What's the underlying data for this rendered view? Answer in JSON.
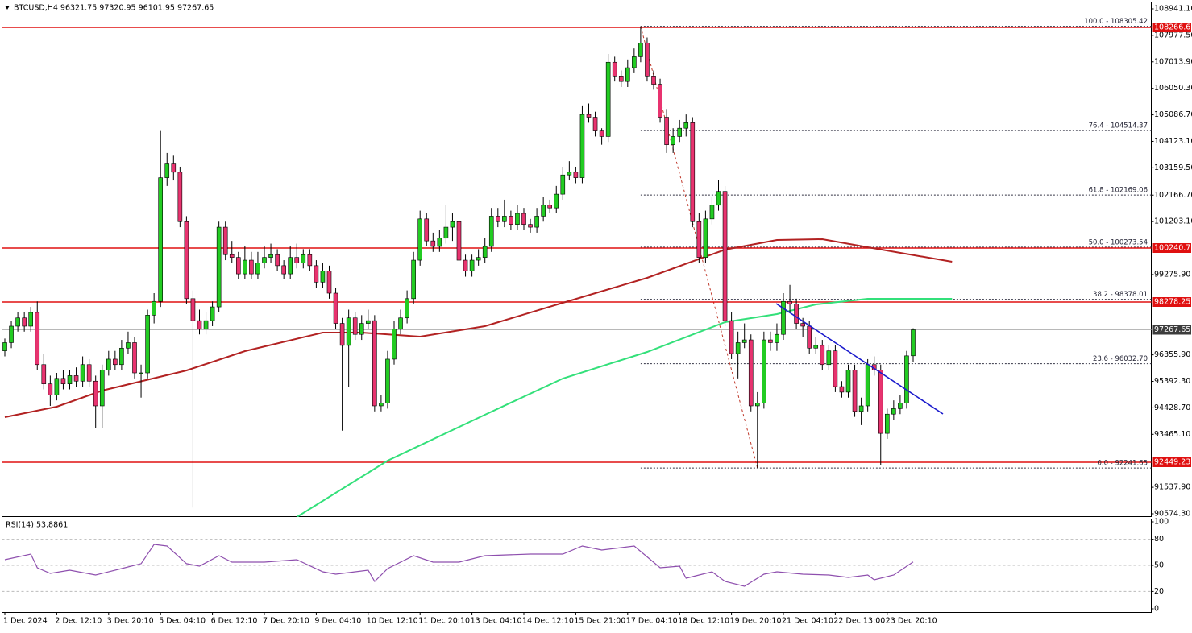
{
  "chart_data": {
    "type": "candlestick",
    "header": "BTCUSD,H4  96321.75 97320.95 96101.95 97267.65",
    "bull_color": "#22cc22",
    "bear_color": "#e8336f",
    "ylim": [
      90457,
      109175
    ],
    "yticks": [
      {
        "value": 108941.1,
        "label": "108941.10"
      },
      {
        "value": 107977.5,
        "label": "107977.50"
      },
      {
        "value": 107013.9,
        "label": "107013.90"
      },
      {
        "value": 106050.3,
        "label": "106050.30"
      },
      {
        "value": 105086.7,
        "label": "105086.70"
      },
      {
        "value": 104123.1,
        "label": "104123.10"
      },
      {
        "value": 103159.5,
        "label": "103159.50"
      },
      {
        "value": 102166.7,
        "label": "102166.70"
      },
      {
        "value": 101203.1,
        "label": "101203.10"
      },
      {
        "value": 99275.9,
        "label": "99275.90"
      },
      {
        "value": 96355.9,
        "label": "96355.90"
      },
      {
        "value": 95392.3,
        "label": "95392.30"
      },
      {
        "value": 94428.7,
        "label": "94428.70"
      },
      {
        "value": 93465.1,
        "label": "93465.10"
      },
      {
        "value": 91537.9,
        "label": "91537.90"
      },
      {
        "value": 90574.3,
        "label": "90574.30"
      }
    ],
    "last_price": 97267.65,
    "hlines": [
      108266.66,
      100240.78,
      98278.25,
      92449.23
    ],
    "hline_color": "#e01010",
    "fib_levels": [
      {
        "label": "100.0 - 108305.42",
        "value": 108305.42
      },
      {
        "label": "76.4 - 104514.37",
        "value": 104514.37
      },
      {
        "label": "61.8 - 102169.06",
        "value": 102169.06
      },
      {
        "label": "50.0 - 100273.54",
        "value": 100273.54
      },
      {
        "label": "38.2 - 98378.01",
        "value": 98378.01
      },
      {
        "label": "23.6 - 96032.70",
        "value": 96032.7
      },
      {
        "label": "0.0 - 92241.65",
        "value": 92241.65
      }
    ],
    "categories": [
      "1 Dec 2024",
      null,
      null,
      null,
      null,
      null,
      null,
      null,
      "2 Dec 12:10",
      null,
      null,
      null,
      null,
      null,
      null,
      null,
      "3 Dec 20:10",
      null,
      null,
      null,
      null,
      null,
      null,
      null,
      "5 Dec 04:10",
      null,
      null,
      null,
      null,
      null,
      null,
      null,
      "6 Dec 12:10",
      null,
      null,
      null,
      null,
      null,
      null,
      null,
      "7 Dec 20:10",
      null,
      null,
      null,
      null,
      null,
      null,
      null,
      "9 Dec 04:10",
      null,
      null,
      null,
      null,
      null,
      null,
      null,
      "10 Dec 12:10",
      null,
      null,
      null,
      null,
      null,
      null,
      null,
      "11 Dec 20:10",
      null,
      null,
      null,
      null,
      null,
      null,
      null,
      "13 Dec 04:10",
      null,
      null,
      null,
      null,
      null,
      null,
      null,
      "14 Dec 12:10",
      null,
      null,
      null,
      null,
      null,
      null,
      null,
      "15 Dec 21:00",
      null,
      null,
      null,
      null,
      null,
      null,
      null,
      "17 Dec 04:10",
      null,
      null,
      null,
      null,
      null,
      null,
      null,
      "18 Dec 12:10",
      null,
      null,
      null,
      null,
      null,
      null,
      null,
      "19 Dec 20:10",
      null,
      null,
      null,
      null,
      null,
      null,
      null,
      "21 Dec 04:10",
      null,
      null,
      null,
      null,
      null,
      null,
      null,
      "22 Dec 13:00",
      null,
      null,
      null,
      null,
      null,
      null,
      null,
      "23 Dec 20:10",
      null,
      null,
      null,
      null
    ],
    "candles": [
      [
        96500,
        96950,
        96300,
        96800
      ],
      [
        96800,
        97600,
        96600,
        97400
      ],
      [
        97400,
        97900,
        97200,
        97700
      ],
      [
        97700,
        97900,
        97200,
        97400
      ],
      [
        97400,
        98100,
        97200,
        97900
      ],
      [
        97900,
        98300,
        95800,
        96000
      ],
      [
        96000,
        96400,
        95100,
        95300
      ],
      [
        95300,
        95600,
        94500,
        94900
      ],
      [
        94900,
        95700,
        94700,
        95500
      ],
      [
        95500,
        95800,
        95100,
        95300
      ],
      [
        95300,
        95800,
        95100,
        95600
      ],
      [
        95600,
        95900,
        95200,
        95400
      ],
      [
        95400,
        96300,
        95200,
        96000
      ],
      [
        96000,
        96200,
        95200,
        95400
      ],
      [
        95400,
        95600,
        93700,
        94500
      ],
      [
        94500,
        96000,
        93700,
        95800
      ],
      [
        95800,
        96500,
        95600,
        96200
      ],
      [
        96200,
        96500,
        95800,
        96000
      ],
      [
        96000,
        96900,
        95800,
        96600
      ],
      [
        96600,
        97200,
        96400,
        96800
      ],
      [
        96800,
        97000,
        95500,
        95700
      ],
      [
        95700,
        96000,
        94800,
        95700
      ],
      [
        95700,
        98000,
        95500,
        97800
      ],
      [
        97800,
        98600,
        97500,
        98300
      ],
      [
        98300,
        104500,
        98100,
        102800
      ],
      [
        102800,
        103700,
        102500,
        103300
      ],
      [
        103300,
        103600,
        102700,
        103000
      ],
      [
        103000,
        103200,
        101000,
        101200
      ],
      [
        101200,
        101400,
        98200,
        98400
      ],
      [
        98400,
        98700,
        90800,
        97600
      ],
      [
        97600,
        98000,
        97100,
        97300
      ],
      [
        97300,
        97900,
        97100,
        97600
      ],
      [
        97600,
        98300,
        97400,
        98100
      ],
      [
        98100,
        101200,
        97900,
        101000
      ],
      [
        101000,
        101200,
        99800,
        100000
      ],
      [
        100000,
        100500,
        99700,
        99900
      ],
      [
        99900,
        100100,
        99100,
        99300
      ],
      [
        99300,
        100300,
        99100,
        99800
      ],
      [
        99800,
        100100,
        99100,
        99300
      ],
      [
        99300,
        100100,
        99100,
        99700
      ],
      [
        99700,
        100300,
        99500,
        99900
      ],
      [
        99900,
        100400,
        99700,
        100000
      ],
      [
        100000,
        100200,
        99400,
        99600
      ],
      [
        99600,
        99800,
        99100,
        99300
      ],
      [
        99300,
        100300,
        99100,
        99900
      ],
      [
        99900,
        100400,
        99500,
        99700
      ],
      [
        99700,
        100200,
        99500,
        100000
      ],
      [
        100000,
        100200,
        99400,
        99600
      ],
      [
        99600,
        99800,
        98800,
        99000
      ],
      [
        99000,
        99700,
        98800,
        99400
      ],
      [
        99400,
        99600,
        98400,
        98600
      ],
      [
        98600,
        98800,
        97300,
        97500
      ],
      [
        97500,
        97700,
        93600,
        96700
      ],
      [
        96700,
        98000,
        95200,
        97700
      ],
      [
        97700,
        97900,
        96900,
        97100
      ],
      [
        97100,
        97800,
        96900,
        97500
      ],
      [
        97500,
        98000,
        97300,
        97600
      ],
      [
        97600,
        97800,
        94300,
        94500
      ],
      [
        94500,
        94900,
        94300,
        94600
      ],
      [
        94600,
        96500,
        94400,
        96200
      ],
      [
        96200,
        97600,
        96000,
        97300
      ],
      [
        97300,
        98000,
        97100,
        97700
      ],
      [
        97700,
        98700,
        97500,
        98400
      ],
      [
        98400,
        100100,
        98200,
        99800
      ],
      [
        99800,
        101600,
        99600,
        101300
      ],
      [
        101300,
        101500,
        100300,
        100500
      ],
      [
        100500,
        100800,
        100100,
        100300
      ],
      [
        100300,
        100900,
        100100,
        100600
      ],
      [
        100600,
        101800,
        100400,
        101000
      ],
      [
        101000,
        101500,
        100500,
        101200
      ],
      [
        101200,
        101400,
        99600,
        99800
      ],
      [
        99800,
        100000,
        99200,
        99400
      ],
      [
        99400,
        100000,
        99200,
        99800
      ],
      [
        99800,
        100200,
        99600,
        99900
      ],
      [
        99900,
        100600,
        99700,
        100300
      ],
      [
        100300,
        101700,
        100100,
        101400
      ],
      [
        101400,
        101700,
        101000,
        101200
      ],
      [
        101200,
        102000,
        101000,
        101400
      ],
      [
        101400,
        101600,
        100900,
        101100
      ],
      [
        101100,
        101800,
        100900,
        101500
      ],
      [
        101500,
        101700,
        100900,
        101100
      ],
      [
        101100,
        101300,
        100800,
        101000
      ],
      [
        101000,
        101700,
        100800,
        101400
      ],
      [
        101400,
        102100,
        101200,
        101800
      ],
      [
        101800,
        102000,
        101500,
        101700
      ],
      [
        101700,
        102500,
        101500,
        102200
      ],
      [
        102200,
        103200,
        102000,
        102900
      ],
      [
        102900,
        103400,
        102700,
        103000
      ],
      [
        103000,
        103200,
        102600,
        102800
      ],
      [
        102800,
        105400,
        102600,
        105100
      ],
      [
        105100,
        105500,
        104800,
        105000
      ],
      [
        105000,
        105200,
        104300,
        104500
      ],
      [
        104500,
        104600,
        104000,
        104300
      ],
      [
        104300,
        107300,
        104100,
        107000
      ],
      [
        107000,
        107200,
        106300,
        106500
      ],
      [
        106500,
        106700,
        106100,
        106300
      ],
      [
        106300,
        107100,
        106100,
        106800
      ],
      [
        106800,
        107500,
        106600,
        107200
      ],
      [
        107200,
        108305,
        107000,
        107700
      ],
      [
        107700,
        107900,
        106300,
        106500
      ],
      [
        106500,
        106700,
        106000,
        106200
      ],
      [
        106200,
        106400,
        104800,
        105000
      ],
      [
        105000,
        105300,
        103700,
        104000
      ],
      [
        104000,
        104600,
        103700,
        104300
      ],
      [
        104300,
        104900,
        104100,
        104600
      ],
      [
        104600,
        105100,
        104300,
        104800
      ],
      [
        104800,
        105000,
        101000,
        101200
      ],
      [
        101200,
        101500,
        99700,
        99900
      ],
      [
        99900,
        101600,
        99700,
        101300
      ],
      [
        101300,
        102100,
        101100,
        101800
      ],
      [
        101800,
        102700,
        101600,
        102300
      ],
      [
        102300,
        102500,
        97400,
        97600
      ],
      [
        97600,
        97900,
        96200,
        96400
      ],
      [
        96400,
        97200,
        95500,
        96800
      ],
      [
        96800,
        97500,
        96600,
        96900
      ],
      [
        96900,
        97100,
        94300,
        94500
      ],
      [
        94500,
        95000,
        92241.65,
        94600
      ],
      [
        94600,
        97200,
        94400,
        96900
      ],
      [
        96900,
        97200,
        96500,
        96800
      ],
      [
        96800,
        97500,
        96500,
        97100
      ],
      [
        97100,
        98600,
        96900,
        98300
      ],
      [
        98300,
        98900,
        97900,
        98200
      ],
      [
        98200,
        98400,
        97300,
        97500
      ],
      [
        97500,
        97700,
        97000,
        97400
      ],
      [
        97400,
        97600,
        96400,
        96600
      ],
      [
        96600,
        97000,
        96400,
        96700
      ],
      [
        96700,
        96900,
        95800,
        96000
      ],
      [
        96000,
        96700,
        95800,
        96500
      ],
      [
        96500,
        96700,
        95000,
        95200
      ],
      [
        95200,
        95400,
        94800,
        95000
      ],
      [
        95000,
        96000,
        94800,
        95800
      ],
      [
        95800,
        96000,
        94100,
        94300
      ],
      [
        94300,
        94800,
        93800,
        94500
      ],
      [
        94500,
        96200,
        94300,
        96000
      ],
      [
        96000,
        96300,
        95600,
        95800
      ],
      [
        95800,
        96000,
        92350,
        93500
      ],
      [
        93500,
        94400,
        93300,
        94200
      ],
      [
        94200,
        94700,
        94000,
        94400
      ],
      [
        94400,
        94900,
        94200,
        94600
      ],
      [
        94600,
        96500,
        94400,
        96320
      ],
      [
        96321.75,
        97320.95,
        96101.95,
        97267.65
      ]
    ],
    "moving_averages": [
      {
        "color": "#b22222",
        "x": [
          0,
          8,
          15,
          28,
          37,
          49,
          55,
          64,
          74,
          86,
          99,
          111,
          119,
          126,
          133,
          146
        ],
        "values": [
          94089,
          94470,
          95056,
          95788,
          96491,
          97165,
          97165,
          97019,
          97400,
          98249,
          99157,
          100182,
          100534,
          100563,
          100270,
          99743
        ]
      },
      {
        "color": "#33e07a",
        "x": [
          45,
          59,
          74,
          86,
          99,
          111,
          119,
          125,
          133,
          146
        ],
        "values": [
          90457,
          92508,
          94177,
          95496,
          96462,
          97546,
          97839,
          98190,
          98396,
          98396
        ]
      }
    ],
    "trendline": {
      "color": "#1a1acc",
      "x": [
        118.9,
        144.6
      ],
      "values": [
        98220,
        94207
      ]
    },
    "rsi": {
      "title": "RSI(14) 53.8861",
      "color": "#8e4fae",
      "ylim": [
        0,
        100
      ],
      "yticks": [
        100,
        80,
        50,
        20,
        0
      ],
      "levels": [
        80,
        50,
        20
      ],
      "x": [
        0,
        4,
        5,
        7,
        10,
        14,
        18,
        21,
        23,
        25,
        28,
        30,
        33,
        35,
        40,
        45,
        49,
        51,
        56,
        57,
        59,
        63,
        66,
        70,
        74,
        81,
        86,
        89,
        92,
        97,
        101,
        104,
        105,
        109,
        111,
        114,
        117,
        119,
        123,
        127,
        130,
        133,
        134,
        137,
        140
      ],
      "values": [
        56.5,
        63,
        47.2,
        40.7,
        44.4,
        38.9,
        46.3,
        51.9,
        74.1,
        72.2,
        51.9,
        49.1,
        61.1,
        53.7,
        53.7,
        56.5,
        42.6,
        39.8,
        44.4,
        31.5,
        46.3,
        61.1,
        53.7,
        53.7,
        61.1,
        63,
        63,
        72.2,
        67.6,
        72.2,
        47.2,
        49.1,
        35.2,
        42.6,
        31.5,
        25.9,
        39.8,
        42.6,
        39.8,
        38.9,
        36.1,
        38.9,
        33.3,
        38.9,
        53.8861
      ]
    }
  }
}
